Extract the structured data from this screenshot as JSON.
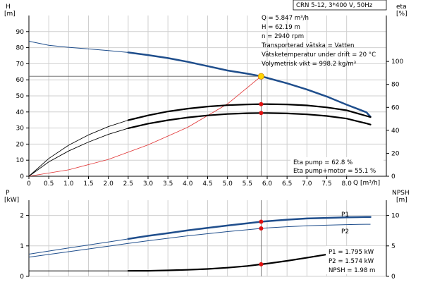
{
  "pump_label": "CRN 5-12, 3*400 V, 50Hz",
  "operating_point": {
    "lines": [
      "Q = 5.847 m³/h",
      "H = 62.19 m",
      "n = 2940 rpm",
      "Transporterad vätska = Vatten",
      "Vätsketemperatur under drift = 20 °C",
      "Volymetrisk vikt = 998.2 kg/m³"
    ]
  },
  "efficiency_info": [
    "Eta pump = 62.8 %",
    "Eta pump+motor = 55.1 %"
  ],
  "power_info": [
    "P1 = 1.795 kW",
    "P2 = 1.574 kW",
    "NPSH = 1.98 m"
  ],
  "colors": {
    "curve_blue": "#1f4e8c",
    "system_curve": "#e03030",
    "duty_point_fill": "#ffd400",
    "marker_red": "#e01010",
    "black": "#000000",
    "grid": "#cfcfcf"
  },
  "chart_data": [
    {
      "type": "line",
      "panel": "head-efficiency",
      "left_axis": {
        "title": "H",
        "unit": "[m]",
        "ylim": [
          0,
          100
        ],
        "ticks": [
          0,
          10,
          20,
          30,
          40,
          50,
          60,
          70,
          80,
          90
        ]
      },
      "right_axis": {
        "title": "eta",
        "unit": "[%]",
        "ylim": [
          0,
          140
        ],
        "ticks": [
          0,
          20,
          40,
          60,
          80,
          100
        ]
      },
      "x_axis": {
        "title": "Q [m³/h]",
        "xlim": [
          0,
          9
        ],
        "ticks": [
          0,
          0.5,
          1.0,
          1.5,
          2.0,
          2.5,
          3.0,
          3.5,
          4.0,
          4.5,
          5.0,
          5.5,
          6.0,
          6.5,
          7.0,
          7.5,
          8.0
        ],
        "tick_labels": [
          "0",
          "0.5",
          "1.0",
          "1.5",
          "2.0",
          "2.5",
          "3.0",
          "3.5",
          "4.0",
          "4.5",
          "5.0",
          "5.5",
          "6.0",
          "6.5",
          "7.0",
          "7.5",
          "8.0"
        ]
      },
      "grid": true,
      "series": [
        {
          "role": "head",
          "axis": "left",
          "style": "thin-then-thick",
          "thick_from": 2.5,
          "points": [
            [
              0,
              84
            ],
            [
              0.5,
              81.5
            ],
            [
              1.0,
              80.2
            ],
            [
              1.5,
              79.2
            ],
            [
              2.0,
              78.2
            ],
            [
              2.5,
              77.0
            ],
            [
              3.0,
              75.4
            ],
            [
              3.5,
              73.5
            ],
            [
              4.0,
              71.2
            ],
            [
              4.5,
              68.5
            ],
            [
              5.0,
              65.8
            ],
            [
              5.5,
              63.8
            ],
            [
              5.847,
              62.19
            ],
            [
              6.0,
              61.2
            ],
            [
              6.5,
              57.8
            ],
            [
              7.0,
              54.0
            ],
            [
              7.5,
              49.6
            ],
            [
              8.0,
              44.5
            ],
            [
              8.5,
              39.8
            ],
            [
              8.6,
              37.0
            ]
          ]
        },
        {
          "role": "system",
          "axis": "left",
          "points": [
            [
              0,
              0
            ],
            [
              1.0,
              4.0
            ],
            [
              2.0,
              10.5
            ],
            [
              3.0,
              19.5
            ],
            [
              4.0,
              30.5
            ],
            [
              5.0,
              45.0
            ],
            [
              5.847,
              62.19
            ]
          ]
        },
        {
          "role": "eta-pump",
          "axis": "right",
          "style": "thin-then-thick",
          "thick_from": 2.5,
          "points": [
            [
              0,
              0
            ],
            [
              0.5,
              15.5
            ],
            [
              1.0,
              27.0
            ],
            [
              1.5,
              36.0
            ],
            [
              2.0,
              43.2
            ],
            [
              2.5,
              48.8
            ],
            [
              3.0,
              53.0
            ],
            [
              3.5,
              56.4
            ],
            [
              4.0,
              58.9
            ],
            [
              4.5,
              60.7
            ],
            [
              5.0,
              61.9
            ],
            [
              5.5,
              62.6
            ],
            [
              5.847,
              62.8
            ],
            [
              6.0,
              62.8
            ],
            [
              6.5,
              62.6
            ],
            [
              7.0,
              61.7
            ],
            [
              7.5,
              60.0
            ],
            [
              8.0,
              57.4
            ],
            [
              8.5,
              52.5
            ],
            [
              8.6,
              51.5
            ]
          ]
        },
        {
          "role": "eta-pump-motor",
          "axis": "right",
          "style": "thin-then-thick",
          "thick_from": 2.5,
          "points": [
            [
              0,
              0
            ],
            [
              0.5,
              12.5
            ],
            [
              1.0,
              22.0
            ],
            [
              1.5,
              29.8
            ],
            [
              2.0,
              36.5
            ],
            [
              2.5,
              41.8
            ],
            [
              3.0,
              45.8
            ],
            [
              3.5,
              48.8
            ],
            [
              4.0,
              51.2
            ],
            [
              4.5,
              53.0
            ],
            [
              5.0,
              54.2
            ],
            [
              5.5,
              54.9
            ],
            [
              5.847,
              55.1
            ],
            [
              6.0,
              55.1
            ],
            [
              6.5,
              54.7
            ],
            [
              7.0,
              53.9
            ],
            [
              7.5,
              52.5
            ],
            [
              8.0,
              50.2
            ],
            [
              8.5,
              46.0
            ],
            [
              8.6,
              45.0
            ]
          ]
        }
      ],
      "duty_point": {
        "x": 5.847,
        "y": 62.19
      },
      "eta_markers": [
        {
          "x": 5.847,
          "y": 62.8
        },
        {
          "x": 5.847,
          "y": 55.1
        }
      ]
    },
    {
      "type": "line",
      "panel": "power-npsh",
      "left_axis": {
        "title": "P",
        "unit": "[kW]",
        "ylim": [
          0,
          2.5
        ],
        "ticks": [
          0,
          1,
          2
        ]
      },
      "right_axis": {
        "title": "NPSH",
        "unit": "[m]",
        "ylim": [
          0,
          12.5
        ],
        "ticks": [
          0,
          5,
          10
        ]
      },
      "grid": true,
      "series": [
        {
          "name": "P1",
          "axis": "left",
          "style": "thin-then-thick",
          "thick_from": 2.5,
          "points": [
            [
              0,
              0.73
            ],
            [
              0.5,
              0.83
            ],
            [
              1.0,
              0.93
            ],
            [
              1.5,
              1.03
            ],
            [
              2.0,
              1.13
            ],
            [
              2.5,
              1.23
            ],
            [
              3.0,
              1.33
            ],
            [
              3.5,
              1.42
            ],
            [
              4.0,
              1.51
            ],
            [
              4.5,
              1.59
            ],
            [
              5.0,
              1.67
            ],
            [
              5.5,
              1.74
            ],
            [
              5.847,
              1.795
            ],
            [
              6.0,
              1.81
            ],
            [
              6.5,
              1.86
            ],
            [
              7.0,
              1.9
            ],
            [
              7.5,
              1.92
            ],
            [
              8.0,
              1.94
            ],
            [
              8.5,
              1.95
            ],
            [
              8.6,
              1.95
            ]
          ]
        },
        {
          "name": "P2",
          "axis": "left",
          "style": "thin",
          "points": [
            [
              0,
              0.63
            ],
            [
              0.5,
              0.72
            ],
            [
              1.0,
              0.81
            ],
            [
              1.5,
              0.9
            ],
            [
              2.0,
              0.99
            ],
            [
              2.5,
              1.08
            ],
            [
              3.0,
              1.17
            ],
            [
              3.5,
              1.25
            ],
            [
              4.0,
              1.33
            ],
            [
              4.5,
              1.4
            ],
            [
              5.0,
              1.47
            ],
            [
              5.5,
              1.53
            ],
            [
              5.847,
              1.574
            ],
            [
              6.0,
              1.59
            ],
            [
              6.5,
              1.63
            ],
            [
              7.0,
              1.66
            ],
            [
              7.5,
              1.68
            ],
            [
              8.0,
              1.7
            ],
            [
              8.5,
              1.71
            ],
            [
              8.6,
              1.71
            ]
          ]
        },
        {
          "role": "npsh",
          "axis": "right",
          "style": "thin-then-thick",
          "thick_from": 2.5,
          "points": [
            [
              0,
              0.9
            ],
            [
              1.0,
              0.9
            ],
            [
              2.0,
              0.9
            ],
            [
              2.5,
              0.9
            ],
            [
              3.0,
              0.92
            ],
            [
              3.5,
              0.98
            ],
            [
              4.0,
              1.08
            ],
            [
              4.5,
              1.22
            ],
            [
              5.0,
              1.42
            ],
            [
              5.5,
              1.7
            ],
            [
              5.847,
              1.98
            ],
            [
              6.0,
              2.1
            ],
            [
              6.5,
              2.55
            ],
            [
              7.0,
              3.05
            ],
            [
              7.5,
              3.6
            ],
            [
              8.0,
              4.3
            ],
            [
              8.1,
              4.4
            ]
          ]
        }
      ],
      "markers": [
        {
          "series": "P1",
          "x": 5.847,
          "y": 1.795
        },
        {
          "series": "P2",
          "x": 5.847,
          "y": 1.574
        },
        {
          "series": "npsh",
          "x": 5.847,
          "y": 1.98
        }
      ]
    }
  ]
}
